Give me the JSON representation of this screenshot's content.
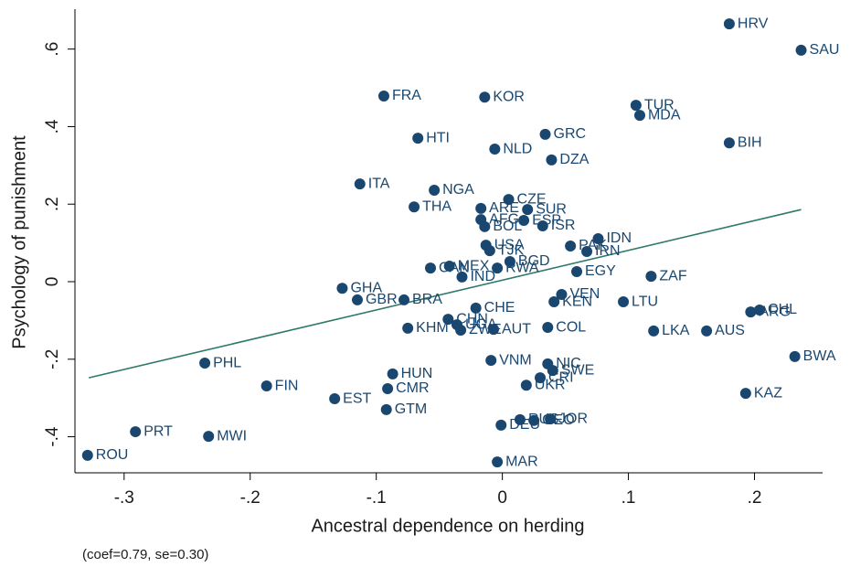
{
  "chart_data": {
    "type": "scatter",
    "x_label": "Ancestral dependence on herding",
    "y_label": "Psychology of punishment",
    "note": "(coef=0.79, se=0.30)",
    "xlim": [
      -0.339,
      0.254
    ],
    "ylim": [
      -0.493,
      0.703
    ],
    "xticks": [
      {
        "value": -0.3,
        "label": "-.3"
      },
      {
        "value": -0.2,
        "label": "-.2"
      },
      {
        "value": -0.1,
        "label": "-.1"
      },
      0,
      {
        "value": 0.1,
        "label": ".1"
      },
      {
        "value": 0.2,
        "label": ".2"
      }
    ],
    "yticks": [
      {
        "value": -0.4,
        "label": "-.4"
      },
      {
        "value": -0.2,
        "label": "-.2"
      },
      0,
      {
        "value": 0.2,
        "label": ".2"
      },
      {
        "value": 0.4,
        "label": ".4"
      },
      {
        "value": 0.6,
        "label": ".6"
      }
    ],
    "color": "#1a476f",
    "fit_color": "#2e7a6a",
    "labels": [
      "HRV",
      "SAU",
      "FRA",
      "KOR",
      "TUR",
      "MDA",
      "GRC",
      "HTI",
      "NLD",
      "BIH",
      "DZA",
      "ITA",
      "NGA",
      "THA",
      "CZE",
      "ARE",
      "SUR",
      "ESP",
      "AFG",
      "BOL",
      "ISR",
      "IDN",
      "PAK",
      "IRN",
      "USA",
      "TJK",
      "BGD",
      "RWA",
      "CAN",
      "MEX",
      "IND",
      "EGY",
      "ZAF",
      "GHA",
      "GBR",
      "BRA",
      "VEN",
      "KEN",
      "LTU",
      "CHE",
      "CHL",
      "ARG",
      "CHN",
      "UGA",
      "KHM",
      "ZWE",
      "AUT",
      "COL",
      "LKA",
      "AUS",
      "BWA",
      "PHL",
      "VNM",
      "NIC",
      "SWE",
      "CRI",
      "HUN",
      "FIN",
      "UKR",
      "KAZ",
      "CMR",
      "EST",
      "GTM",
      "JOR",
      "GEO",
      "RUS",
      "DEU",
      "PRT",
      "MWI",
      "ROU",
      "MAR"
    ],
    "x": [
      0.18,
      0.237,
      -0.094,
      -0.014,
      0.106,
      0.109,
      0.034,
      -0.067,
      -0.006,
      0.18,
      0.039,
      -0.113,
      -0.054,
      -0.07,
      0.005,
      -0.017,
      0.02,
      0.017,
      -0.017,
      -0.014,
      0.032,
      0.076,
      0.054,
      0.067,
      -0.013,
      -0.01,
      0.006,
      -0.004,
      -0.057,
      -0.042,
      -0.032,
      0.059,
      0.118,
      -0.127,
      -0.115,
      -0.078,
      0.047,
      0.041,
      0.096,
      -0.021,
      0.204,
      0.197,
      -0.043,
      -0.036,
      -0.075,
      -0.033,
      -0.007,
      0.036,
      0.12,
      0.162,
      0.232,
      -0.236,
      -0.009,
      0.036,
      0.04,
      0.03,
      -0.087,
      -0.187,
      0.019,
      0.193,
      -0.091,
      -0.133,
      -0.092,
      0.038,
      0.025,
      0.014,
      -0.001,
      -0.291,
      -0.233,
      -0.329,
      -0.004
    ],
    "y": [
      0.665,
      0.597,
      0.479,
      0.476,
      0.455,
      0.429,
      0.38,
      0.37,
      0.342,
      0.358,
      0.314,
      0.252,
      0.236,
      0.193,
      0.212,
      0.189,
      0.186,
      0.158,
      0.16,
      0.142,
      0.144,
      0.111,
      0.092,
      0.078,
      0.094,
      0.08,
      0.052,
      0.035,
      0.035,
      0.04,
      0.012,
      0.026,
      0.014,
      -0.017,
      -0.047,
      -0.047,
      -0.033,
      -0.052,
      -0.052,
      -0.068,
      -0.073,
      -0.078,
      -0.097,
      -0.111,
      -0.12,
      -0.125,
      -0.123,
      -0.118,
      -0.127,
      -0.127,
      -0.193,
      -0.21,
      -0.203,
      -0.212,
      -0.229,
      -0.248,
      -0.238,
      -0.269,
      -0.267,
      -0.288,
      -0.276,
      -0.302,
      -0.33,
      -0.354,
      -0.358,
      -0.356,
      -0.37,
      -0.387,
      -0.399,
      -0.448,
      -0.465
    ],
    "fit": {
      "x": [
        -0.328,
        0.237
      ],
      "y": [
        -0.248,
        0.186
      ]
    }
  }
}
